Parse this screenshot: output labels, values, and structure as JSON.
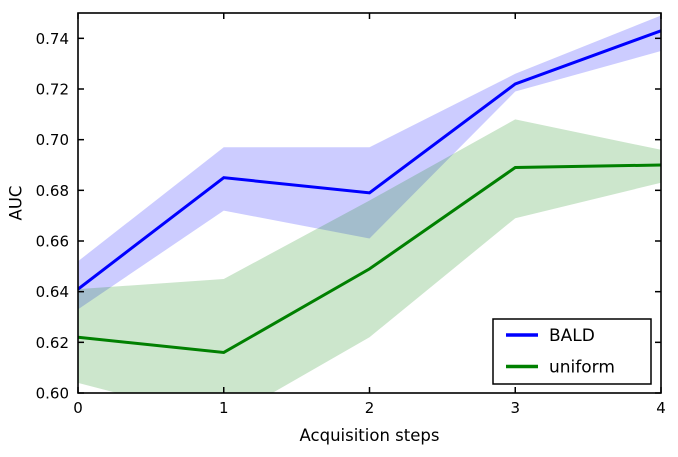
{
  "chart_data": {
    "type": "line",
    "title": "",
    "xlabel": "Acquisition steps",
    "ylabel": "AUC",
    "x": [
      0,
      1,
      2,
      3,
      4
    ],
    "xlim": [
      0,
      4
    ],
    "ylim": [
      0.6,
      0.75
    ],
    "xticks": [
      0,
      1,
      2,
      3,
      4
    ],
    "xtick_labels": [
      "0",
      "1",
      "2",
      "3",
      "4"
    ],
    "yticks": [
      0.6,
      0.62,
      0.64,
      0.66,
      0.68,
      0.7,
      0.72,
      0.74
    ],
    "ytick_labels": [
      "0.60",
      "0.62",
      "0.64",
      "0.66",
      "0.68",
      "0.70",
      "0.72",
      "0.74"
    ],
    "grid": false,
    "legend_position": "lower right",
    "axis_color": "#000000",
    "background_color": "#ffffff",
    "series": [
      {
        "name": "BALD",
        "color": "#0000ff",
        "band_color": "rgba(0,0,255,0.2)",
        "values": [
          0.641,
          0.685,
          0.679,
          0.722,
          0.743
        ],
        "band_lower": [
          0.633,
          0.672,
          0.661,
          0.719,
          0.735
        ],
        "band_upper": [
          0.652,
          0.697,
          0.697,
          0.726,
          0.749
        ]
      },
      {
        "name": "uniform",
        "color": "#008000",
        "band_color": "rgba(0,128,0,0.2)",
        "values": [
          0.622,
          0.616,
          0.649,
          0.689,
          0.69
        ],
        "band_lower": [
          0.604,
          0.589,
          0.622,
          0.669,
          0.683
        ],
        "band_upper": [
          0.641,
          0.645,
          0.676,
          0.708,
          0.696
        ]
      }
    ]
  }
}
